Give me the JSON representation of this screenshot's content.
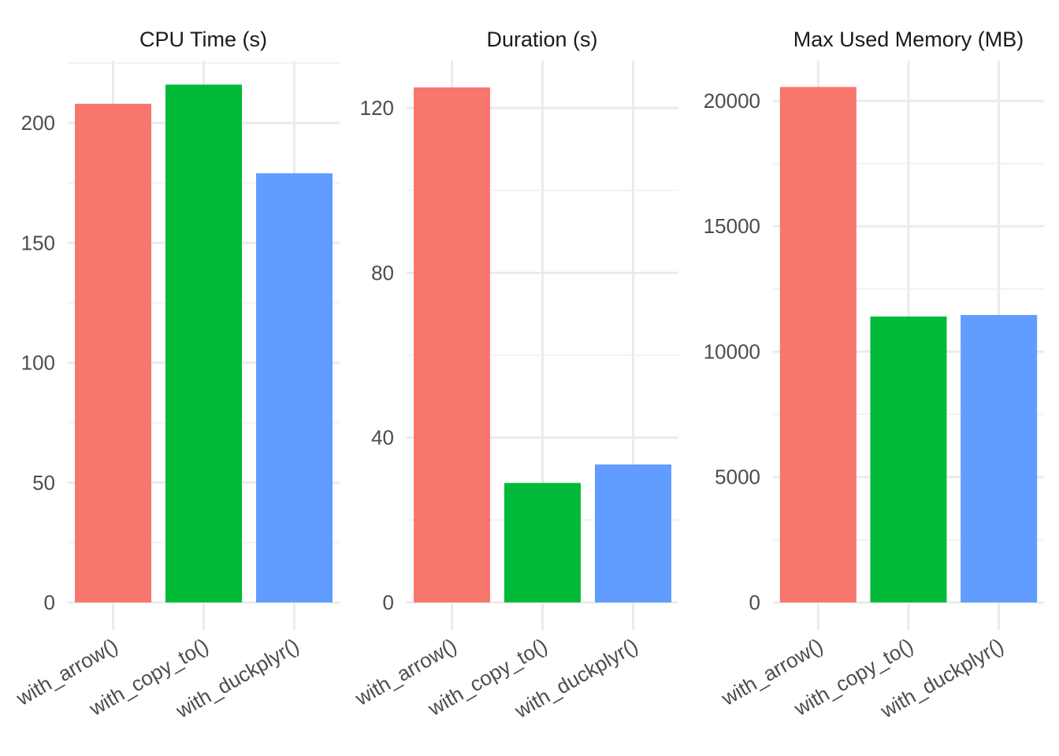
{
  "chart_data": [
    {
      "type": "bar",
      "title": "CPU Time (s)",
      "categories": [
        "with_arrow()",
        "with_copy_to()",
        "with_duckplyr()"
      ],
      "values": [
        208,
        216,
        179
      ],
      "colors": [
        "#F8766D",
        "#00BA38",
        "#619CFF"
      ],
      "ylim": [
        0,
        226
      ],
      "yticks": [
        0,
        50,
        100,
        150,
        200
      ],
      "yminor": [
        25,
        75,
        125,
        175,
        225
      ],
      "grid": true
    },
    {
      "type": "bar",
      "title": "Duration (s)",
      "categories": [
        "with_arrow()",
        "with_copy_to()",
        "with_duckplyr()"
      ],
      "values": [
        125,
        29,
        33.5
      ],
      "colors": [
        "#F8766D",
        "#00BA38",
        "#619CFF"
      ],
      "ylim": [
        0,
        131.5
      ],
      "yticks": [
        0,
        40,
        80,
        120
      ],
      "yminor": [
        20,
        60,
        100
      ],
      "grid": true
    },
    {
      "type": "bar",
      "title": "Max Used Memory (MB)",
      "categories": [
        "with_arrow()",
        "with_copy_to()",
        "with_duckplyr()"
      ],
      "values": [
        20550,
        11400,
        11460
      ],
      "colors": [
        "#F8766D",
        "#00BA38",
        "#619CFF"
      ],
      "ylim": [
        0,
        21600
      ],
      "yticks": [
        0,
        5000,
        10000,
        15000,
        20000
      ],
      "yminor": [
        2500,
        7500,
        12500,
        17500
      ],
      "grid": true
    }
  ]
}
